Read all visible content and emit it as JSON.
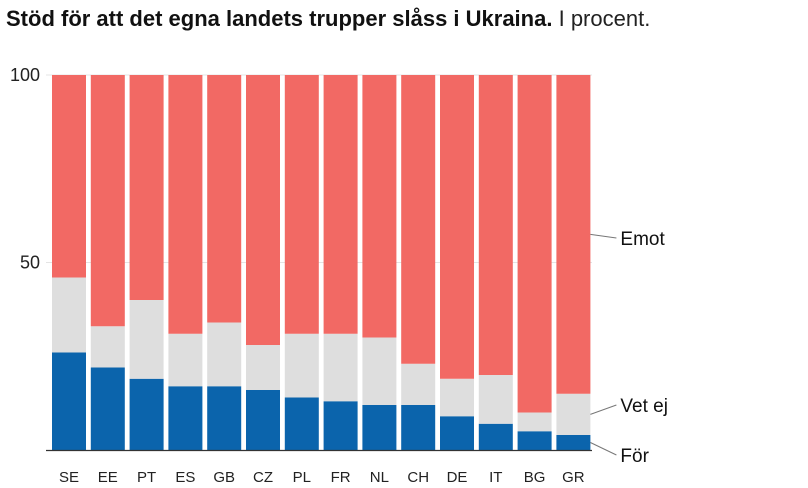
{
  "title_bold": "Stöd för att det egna landets trupper slåss i Ukraina.",
  "title_rest": "I procent.",
  "colors": {
    "for": "#0b64ac",
    "vet_ej": "#dedede",
    "emot": "#f26964"
  },
  "chart_data": {
    "type": "bar",
    "stacked": true,
    "title": "Stöd för att det egna landets trupper slåss i Ukraina. I procent.",
    "categories": [
      "SE",
      "EE",
      "PT",
      "ES",
      "GB",
      "CZ",
      "PL",
      "FR",
      "NL",
      "CH",
      "DE",
      "IT",
      "BG",
      "GR"
    ],
    "series": [
      {
        "name": "För",
        "values": [
          26,
          22,
          19,
          17,
          17,
          16,
          14,
          13,
          12,
          12,
          9,
          7,
          5,
          4
        ]
      },
      {
        "name": "Vet ej",
        "values": [
          20,
          11,
          21,
          14,
          17,
          12,
          17,
          18,
          18,
          11,
          10,
          13,
          5,
          11
        ]
      },
      {
        "name": "Emot",
        "values": [
          54,
          67,
          60,
          69,
          66,
          72,
          69,
          69,
          70,
          77,
          81,
          80,
          90,
          85
        ]
      }
    ],
    "yticks": [
      0,
      50,
      100
    ],
    "ytick_labels": [
      "",
      "50",
      "100"
    ],
    "ylim": [
      0,
      100
    ],
    "legend": [
      "Emot",
      "Vet ej",
      "För"
    ],
    "xlabel": "",
    "ylabel": ""
  }
}
